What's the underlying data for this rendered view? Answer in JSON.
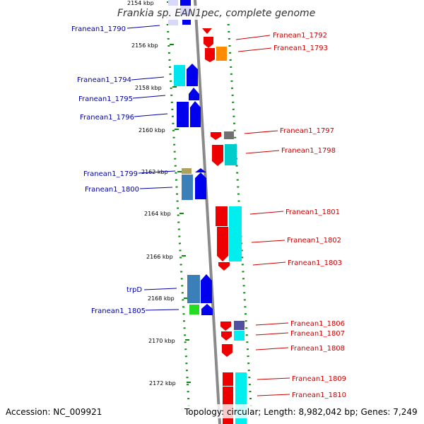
{
  "title": "Frankia sp. EAN1pec, complete genome",
  "footer": {
    "accession": "Accession: NC_009921",
    "topology": "Topology: circular; Length: 8,982,042 bp; Genes: 7,249"
  },
  "colors": {
    "forward_strand": "#0000ee",
    "reverse_strand": "#ee0000",
    "left_labels": "#0000aa",
    "right_labels": "#cc0000",
    "backbone": "#888888",
    "ticks": "#118811"
  },
  "ticks": [
    "2154 kbp",
    "2156 kbp",
    "2158 kbp",
    "2160 kbp",
    "2162 kbp",
    "2164 kbp",
    "2166 kbp",
    "2168 kbp",
    "2170 kbp",
    "2172 kbp"
  ],
  "left_genes": [
    "Franean1_1790",
    "Franean1_1794",
    "Franean1_1795",
    "Franean1_1796",
    "Franean1_1799",
    "Franean1_1800",
    "trpD",
    "Franean1_1805"
  ],
  "right_genes": [
    "Franean1_1792",
    "Franean1_1793",
    "Franean1_1797",
    "Franean1_1798",
    "Franean1_1801",
    "Franean1_1802",
    "Franean1_1803",
    "Franean1_1806",
    "Franean1_1807",
    "Franean1_1808",
    "Franean1_1809",
    "Franean1_1810"
  ]
}
